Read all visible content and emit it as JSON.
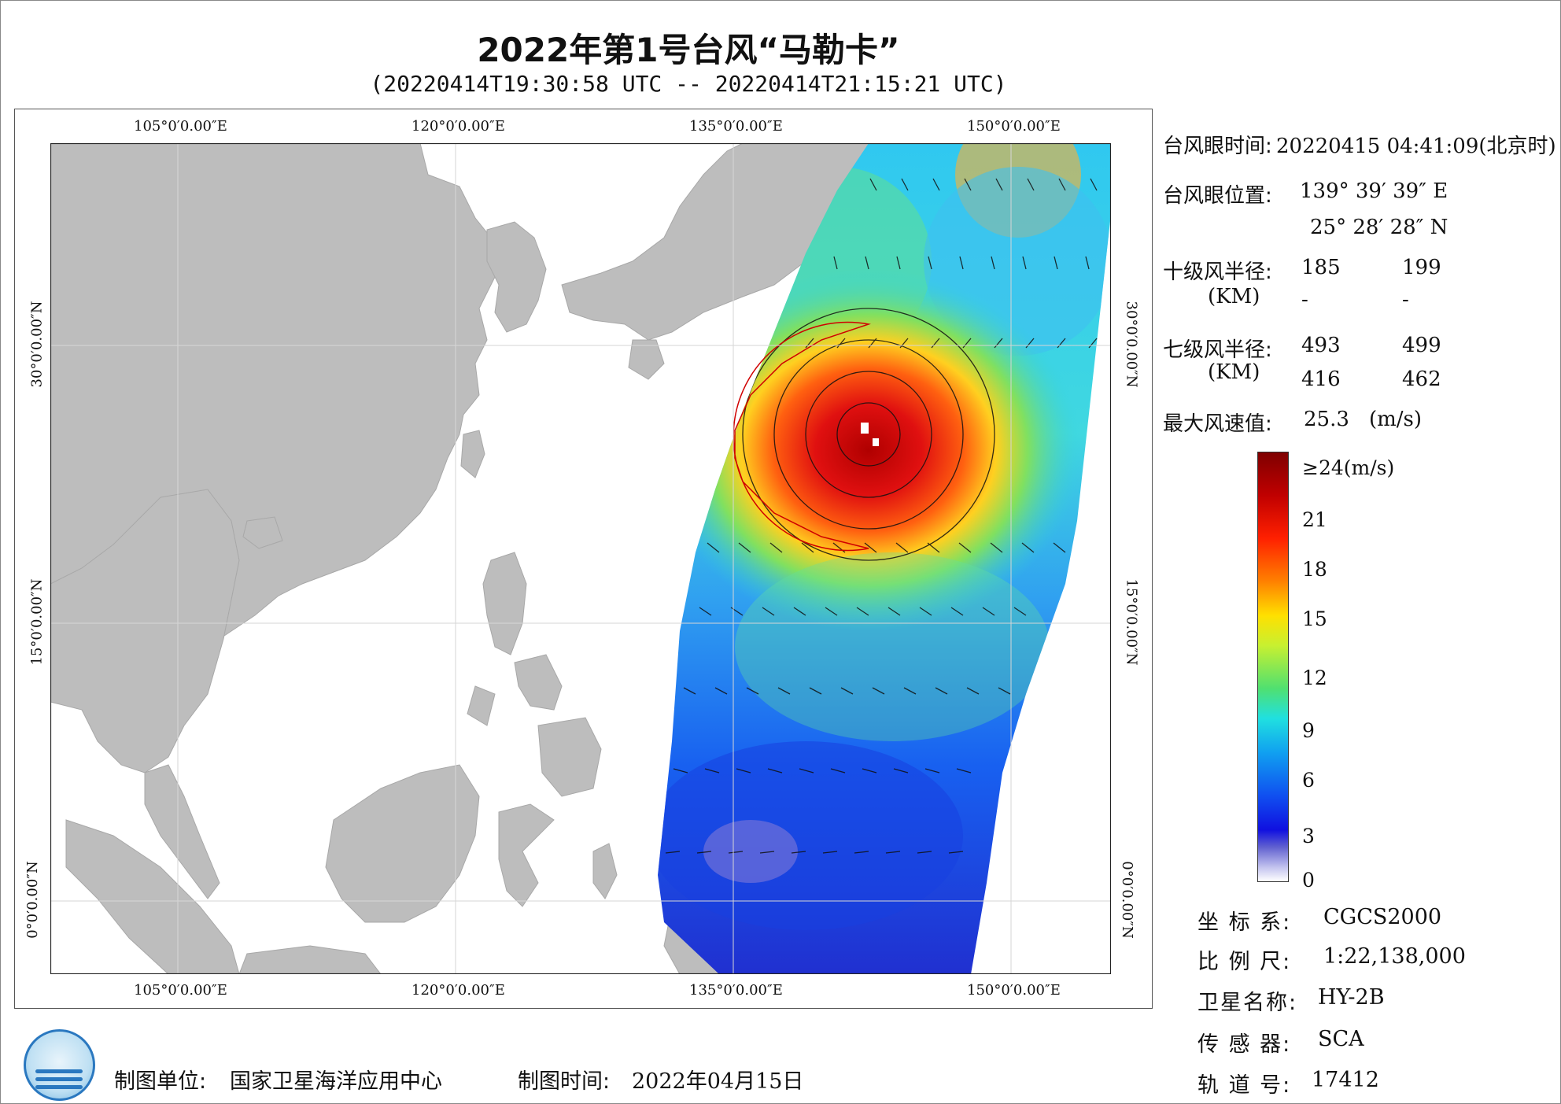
{
  "title": "2022年第1号台风“马勒卡”",
  "subtitle": "(20220414T19:30:58 UTC -- 20220414T21:15:21 UTC)",
  "map": {
    "lon_ticks": [
      "105°0′0.00″E",
      "120°0′0.00″E",
      "135°0′0.00″E",
      "150°0′0.00″E"
    ],
    "lat_ticks": [
      "30°0′0.00″N",
      "15°0′0.00″N",
      "0°0′0.00″N"
    ],
    "colors": {
      "land": "#bdbdbd",
      "ocean": "#ffffff",
      "grid": "#d8d8d8",
      "track_circle": "#d00000"
    }
  },
  "info": {
    "eye_time_label": "台风眼时间:",
    "eye_time_value": "20220415 04:41:09(北京时)",
    "eye_pos_label": "台风眼位置:",
    "eye_lon": "139° 39′ 39″ E",
    "eye_lat": "25° 28′ 28″ N",
    "r10_label": "十级风半径:",
    "r10_unit": "(KM)",
    "r10_values": [
      "185",
      "199",
      "-",
      "-"
    ],
    "r7_label": "七级风半径:",
    "r7_unit": "(KM)",
    "r7_values": [
      "493",
      "499",
      "416",
      "462"
    ],
    "max_label": "最大风速值:",
    "max_value": "25.3",
    "max_unit": "(m/s)"
  },
  "colorbar": {
    "labels": [
      "≥24(m/s)",
      "21",
      "18",
      "15",
      "12",
      "9",
      "6",
      "3",
      "0"
    ]
  },
  "meta": [
    {
      "key": "坐 标 系:",
      "value": "CGCS2000"
    },
    {
      "key": "比 例 尺:",
      "value": "1:22,138,000"
    },
    {
      "key": "卫星名称:",
      "value": "HY-2B"
    },
    {
      "key": "传 感 器:",
      "value": "SCA"
    },
    {
      "key": "轨 道 号:",
      "value": "17412"
    }
  ],
  "footer": {
    "org_label": "制图单位:",
    "org_value": "国家卫星海洋应用中心",
    "date_label": "制图时间:",
    "date_value": "2022年04月15日"
  }
}
